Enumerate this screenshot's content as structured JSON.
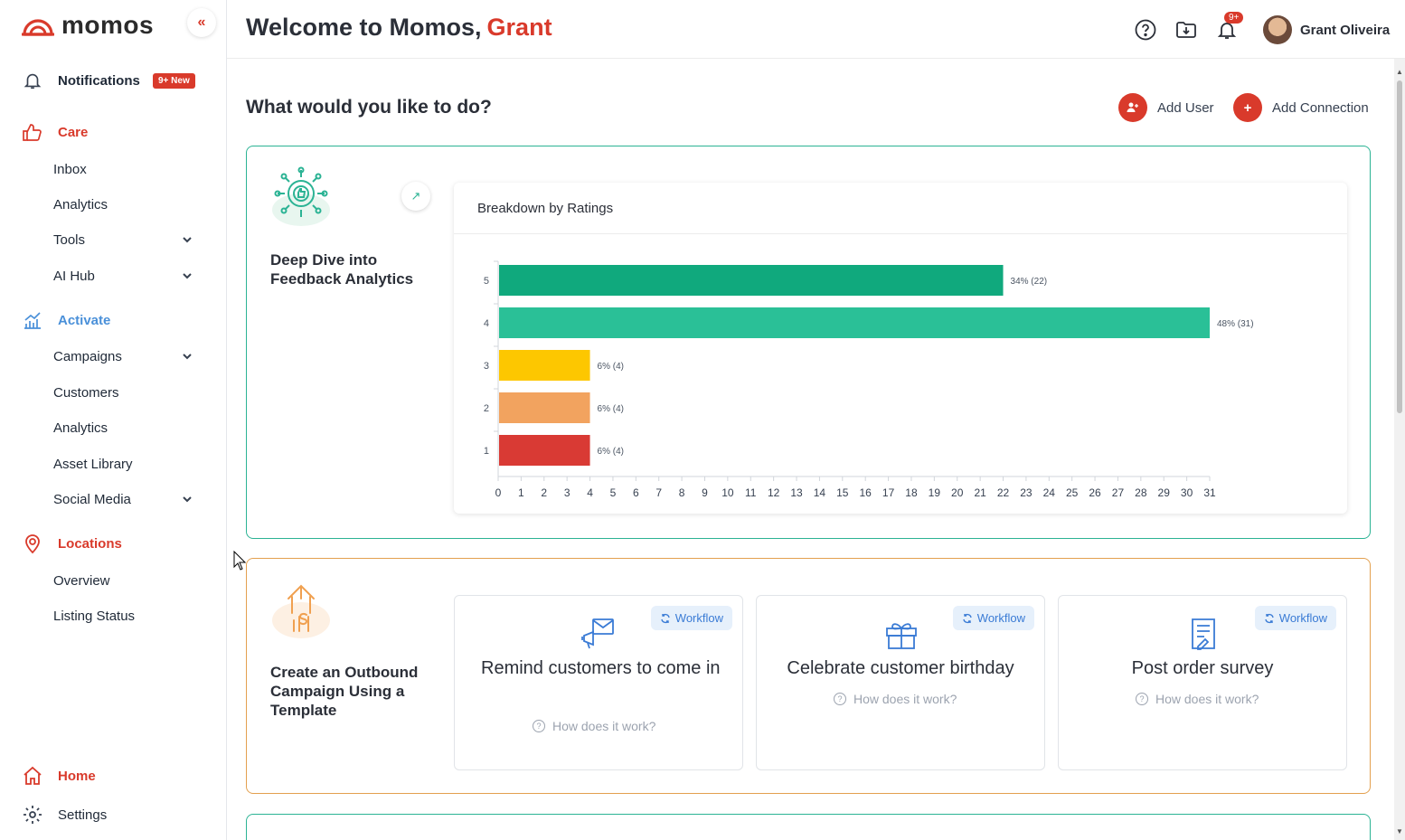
{
  "brand": {
    "name": "momos",
    "color": "#d93a2b"
  },
  "sidebar": {
    "collapse_icon": "«",
    "notifications": {
      "label": "Notifications",
      "badge": "9+ New"
    },
    "care": {
      "label": "Care",
      "items": [
        "Inbox",
        "Analytics",
        "Tools",
        "AI Hub"
      ]
    },
    "activate": {
      "label": "Activate",
      "items": [
        "Campaigns",
        "Customers",
        "Analytics",
        "Asset Library",
        "Social Media"
      ]
    },
    "locations": {
      "label": "Locations",
      "items": [
        "Overview",
        "Listing Status"
      ]
    },
    "home": "Home",
    "settings": "Settings"
  },
  "header": {
    "welcome": "Welcome to Momos,",
    "user_first": "Grant",
    "notif_badge": "9+",
    "user_name": "Grant Oliveira"
  },
  "main": {
    "question": "What would you like to do?",
    "add_user": "Add User",
    "add_connection": "Add Connection",
    "feedback_card": {
      "title": "Deep Dive into Feedback Analytics",
      "expand_icon": "↗"
    },
    "campaign_card": {
      "title": "Create an Outbound Campaign Using a Template",
      "templates": [
        {
          "badge": "Workflow",
          "title": "Remind customers to come in",
          "how": "How does it work?"
        },
        {
          "badge": "Workflow",
          "title": "Celebrate customer birthday",
          "how": "How does it work?"
        },
        {
          "badge": "Workflow",
          "title": "Post order survey",
          "how": "How does it work?"
        }
      ]
    }
  },
  "chart_data": {
    "type": "bar",
    "orientation": "horizontal",
    "title": "Breakdown by Ratings",
    "categories": [
      "5",
      "4",
      "3",
      "2",
      "1"
    ],
    "values": [
      22,
      31,
      4,
      4,
      4
    ],
    "labels": [
      "34% (22)",
      "48% (31)",
      "6% (4)",
      "6% (4)",
      "6% (4)"
    ],
    "colors": [
      "#10a97d",
      "#2ac097",
      "#fdc700",
      "#f2a35f",
      "#d93a34"
    ],
    "xlim": [
      0,
      31
    ],
    "xticks": [
      0,
      1,
      2,
      3,
      4,
      5,
      6,
      7,
      8,
      9,
      10,
      11,
      12,
      13,
      14,
      15,
      16,
      17,
      18,
      19,
      20,
      21,
      22,
      23,
      24,
      25,
      26,
      27,
      28,
      29,
      30,
      31
    ]
  }
}
